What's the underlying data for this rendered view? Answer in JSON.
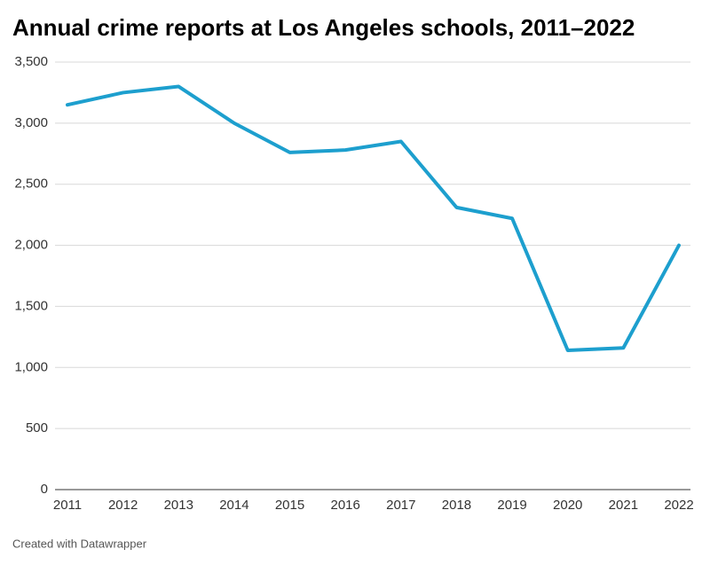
{
  "chart_data": {
    "type": "line",
    "title": "Annual crime reports at Los Angeles schools, 2011–2022",
    "categories": [
      "2011",
      "2012",
      "2013",
      "2014",
      "2015",
      "2016",
      "2017",
      "2018",
      "2019",
      "2020",
      "2021",
      "2022"
    ],
    "series": [
      {
        "color": "#1d9fce",
        "values": [
          3150,
          3250,
          3300,
          3000,
          2760,
          2780,
          2850,
          2310,
          2220,
          1140,
          1160,
          2000
        ]
      }
    ],
    "ylim": [
      0,
      3500
    ],
    "yticks": [
      0,
      500,
      {
        "value": 1000,
        "label": "1,000"
      },
      {
        "value": 1500,
        "label": "1,500"
      },
      {
        "value": 2000,
        "label": "2,000"
      },
      {
        "value": 2500,
        "label": "2,500"
      },
      {
        "value": 3000,
        "label": "3,000"
      },
      {
        "value": 3500,
        "label": "3,500"
      }
    ],
    "grid": true,
    "credit": "Created with Datawrapper"
  }
}
